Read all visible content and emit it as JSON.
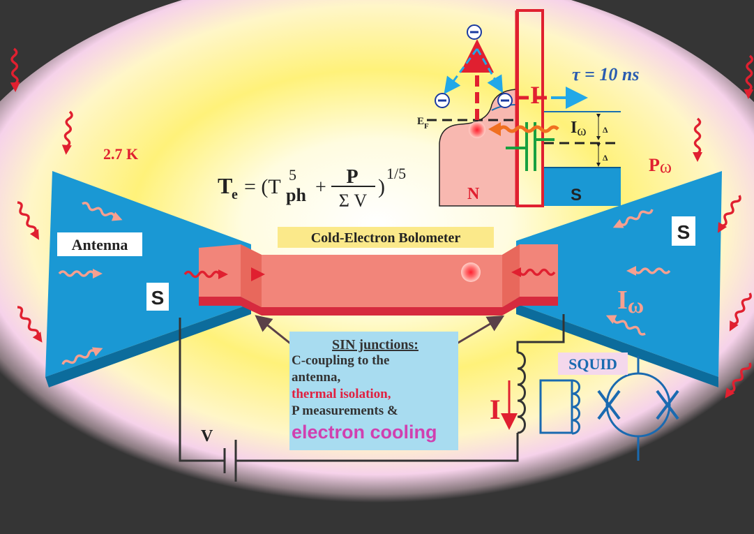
{
  "formula": {
    "lhs": "T",
    "lhs_sub": "e",
    "eq": "= (T",
    "power": "5",
    "ph": "ph",
    "plus": "+",
    "numerator": "P",
    "denominator": "Σ V",
    "close": ")",
    "exponent": "1/5"
  },
  "band_diagram": {
    "tau": "τ = 10 ns",
    "current": "I",
    "fermi": "E",
    "fermi_sub": "F",
    "photon_current": "I",
    "photon_current_sub": "ω",
    "gap_upper": "Δ",
    "gap_lower": "Δ",
    "normal": "N",
    "superconductor": "S"
  },
  "labels": {
    "temperature": "2.7 K",
    "power": "P",
    "power_sub": "ω",
    "antenna": "Antenna",
    "bolometer": "Cold-Electron Bolometer",
    "s_left": "S",
    "s_right": "S",
    "current_omega": "I",
    "current_omega_sub": "ω",
    "squid": "SQUID",
    "bias_current": "I",
    "voltage": "V"
  },
  "callout": {
    "heading": "SIN junctions:",
    "lines": [
      "C-coupling to the",
      "antenna,",
      "thermal isolation,",
      "P measurements &",
      "electron cooling"
    ]
  }
}
